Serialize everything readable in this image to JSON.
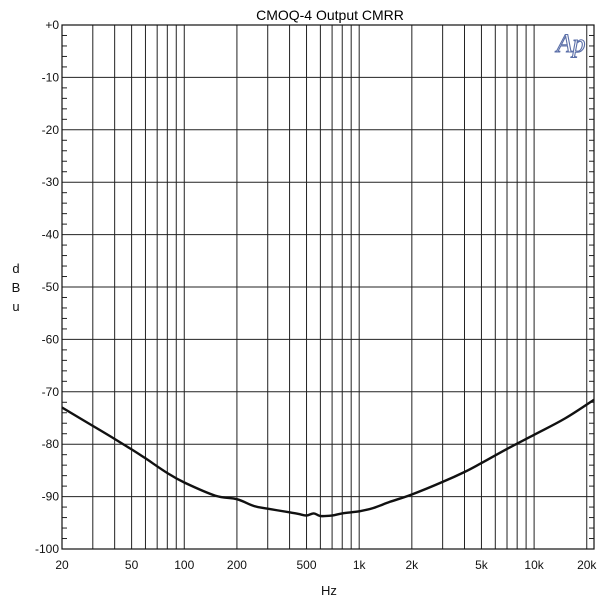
{
  "chart_data": {
    "type": "line",
    "title": "CMOQ-4 Output CMRR",
    "xlabel": "Hz",
    "ylabel": "dBu",
    "ylabel_letters": [
      "d",
      "B",
      "u"
    ],
    "x_scale": "log",
    "xlim": [
      20,
      22000
    ],
    "ylim": [
      -100,
      0
    ],
    "grid": true,
    "logo_text": "Ap",
    "x_ticks": [
      {
        "value": 20,
        "label": "20"
      },
      {
        "value": 50,
        "label": "50"
      },
      {
        "value": 100,
        "label": "100"
      },
      {
        "value": 200,
        "label": "200"
      },
      {
        "value": 500,
        "label": "500"
      },
      {
        "value": 1000,
        "label": "1k"
      },
      {
        "value": 2000,
        "label": "2k"
      },
      {
        "value": 5000,
        "label": "5k"
      },
      {
        "value": 10000,
        "label": "10k"
      },
      {
        "value": 20000,
        "label": "20k"
      }
    ],
    "y_ticks": [
      {
        "value": 0,
        "label": "+0"
      },
      {
        "value": -10,
        "label": "-10"
      },
      {
        "value": -20,
        "label": "-20"
      },
      {
        "value": -30,
        "label": "-30"
      },
      {
        "value": -40,
        "label": "-40"
      },
      {
        "value": -50,
        "label": "-50"
      },
      {
        "value": -60,
        "label": "-60"
      },
      {
        "value": -70,
        "label": "-70"
      },
      {
        "value": -80,
        "label": "-80"
      },
      {
        "value": -90,
        "label": "-90"
      },
      {
        "value": -100,
        "label": "-100"
      }
    ],
    "series": [
      {
        "color": "#111111",
        "x": [
          20,
          30,
          40,
          50,
          60,
          80,
          100,
          150,
          200,
          250,
          300,
          400,
          450,
          500,
          550,
          600,
          700,
          800,
          1000,
          1200,
          1500,
          2000,
          3000,
          4000,
          5000,
          7000,
          10000,
          15000,
          22000
        ],
        "y": [
          -73,
          -76.5,
          -79,
          -81,
          -82.7,
          -85.5,
          -87.3,
          -89.8,
          -90.5,
          -91.8,
          -92.3,
          -93,
          -93.3,
          -93.6,
          -93.2,
          -93.7,
          -93.6,
          -93.2,
          -92.8,
          -92.2,
          -91,
          -89.6,
          -87.2,
          -85.3,
          -83.6,
          -80.9,
          -78.2,
          -75.1,
          -71.5
        ]
      }
    ]
  }
}
